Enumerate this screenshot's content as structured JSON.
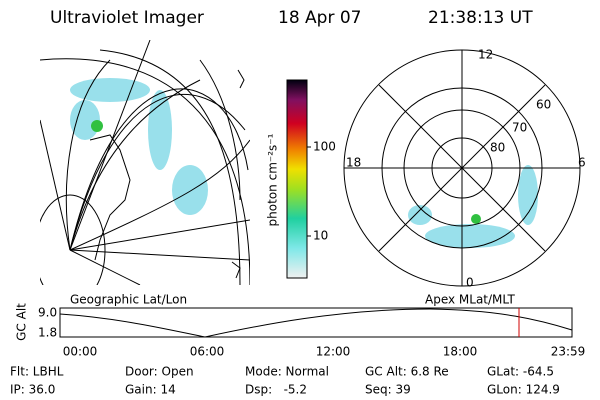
{
  "header": {
    "title": "Ultraviolet Imager",
    "date": "18 Apr 07",
    "time": "21:38:13 UT"
  },
  "colorbar": {
    "label": "photon cm⁻²s⁻¹",
    "ticks": [
      "100",
      "10"
    ]
  },
  "polar": {
    "labels": [
      "12",
      "18",
      "6",
      "0",
      "60",
      "70",
      "80"
    ]
  },
  "altitude_plot": {
    "left_label": "Geographic Lat/Lon",
    "right_label": "Apex MLat/MLT",
    "y_label": "GC Alt",
    "yticks": [
      "9.0",
      "1.8"
    ],
    "xticks": [
      "00:00",
      "06:00",
      "12:00",
      "18:00",
      "23:59"
    ]
  },
  "info": [
    [
      "Flt: LBHL",
      "IP: 36.0"
    ],
    [
      "Door: Open",
      "Gain: 14"
    ],
    [
      "Mode: Normal",
      "Dsp:   -5.2"
    ],
    [
      "GC Alt: 6.8 Re",
      "Seq: 39"
    ],
    [
      "GLat: -64.5",
      "GLon: 124.9"
    ]
  ]
}
